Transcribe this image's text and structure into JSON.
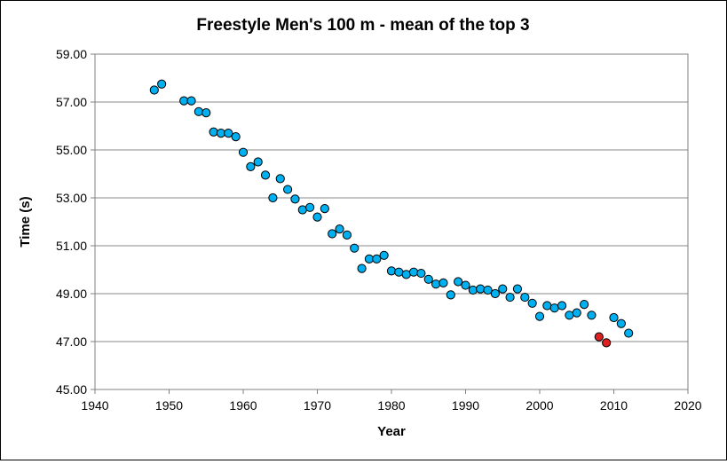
{
  "chart_data": {
    "type": "scatter",
    "title": "Freestyle Men's 100 m - mean of the top 3",
    "xlabel": "Year",
    "ylabel": "Time (s)",
    "xlim": [
      1940,
      2020
    ],
    "ylim": [
      45,
      59
    ],
    "x_ticks": [
      1940,
      1950,
      1960,
      1970,
      1980,
      1990,
      2000,
      2010,
      2020
    ],
    "y_ticks": [
      "45.00",
      "47.00",
      "49.00",
      "51.00",
      "53.00",
      "55.00",
      "57.00",
      "59.00"
    ],
    "grid": "horizontal",
    "legend": "none",
    "colors": {
      "primary": "#00b0f0",
      "highlight": "#e02020",
      "outline": "#000000",
      "grid": "#888888"
    },
    "series": [
      {
        "name": "Mean of top 3",
        "color": "#00b0f0",
        "points": [
          [
            1948,
            57.5
          ],
          [
            1949,
            57.75
          ],
          [
            1952,
            57.05
          ],
          [
            1953,
            57.05
          ],
          [
            1954,
            56.6
          ],
          [
            1955,
            56.55
          ],
          [
            1956,
            55.75
          ],
          [
            1957,
            55.7
          ],
          [
            1958,
            55.7
          ],
          [
            1959,
            55.55
          ],
          [
            1960,
            54.9
          ],
          [
            1961,
            54.3
          ],
          [
            1962,
            54.5
          ],
          [
            1963,
            53.95
          ],
          [
            1964,
            53.0
          ],
          [
            1965,
            53.8
          ],
          [
            1966,
            53.35
          ],
          [
            1967,
            52.95
          ],
          [
            1968,
            52.5
          ],
          [
            1969,
            52.6
          ],
          [
            1970,
            52.2
          ],
          [
            1971,
            52.55
          ],
          [
            1972,
            51.5
          ],
          [
            1973,
            51.7
          ],
          [
            1974,
            51.45
          ],
          [
            1975,
            50.9
          ],
          [
            1976,
            50.05
          ],
          [
            1977,
            50.45
          ],
          [
            1978,
            50.45
          ],
          [
            1979,
            50.6
          ],
          [
            1980,
            49.95
          ],
          [
            1981,
            49.9
          ],
          [
            1982,
            49.8
          ],
          [
            1983,
            49.9
          ],
          [
            1984,
            49.85
          ],
          [
            1985,
            49.6
          ],
          [
            1986,
            49.4
          ],
          [
            1987,
            49.45
          ],
          [
            1988,
            48.95
          ],
          [
            1989,
            49.5
          ],
          [
            1990,
            49.35
          ],
          [
            1991,
            49.15
          ],
          [
            1992,
            49.2
          ],
          [
            1993,
            49.15
          ],
          [
            1994,
            49.0
          ],
          [
            1995,
            49.2
          ],
          [
            1996,
            48.85
          ],
          [
            1997,
            49.2
          ],
          [
            1998,
            48.85
          ],
          [
            1999,
            48.6
          ],
          [
            2000,
            48.05
          ],
          [
            2001,
            48.5
          ],
          [
            2002,
            48.4
          ],
          [
            2003,
            48.5
          ],
          [
            2004,
            48.1
          ],
          [
            2005,
            48.2
          ],
          [
            2006,
            48.55
          ],
          [
            2007,
            48.1
          ],
          [
            2010,
            48.0
          ],
          [
            2011,
            47.75
          ],
          [
            2012,
            47.35
          ]
        ]
      },
      {
        "name": "Highlighted years",
        "color": "#e02020",
        "points": [
          [
            2008,
            47.2
          ],
          [
            2009,
            46.95
          ]
        ]
      }
    ]
  }
}
